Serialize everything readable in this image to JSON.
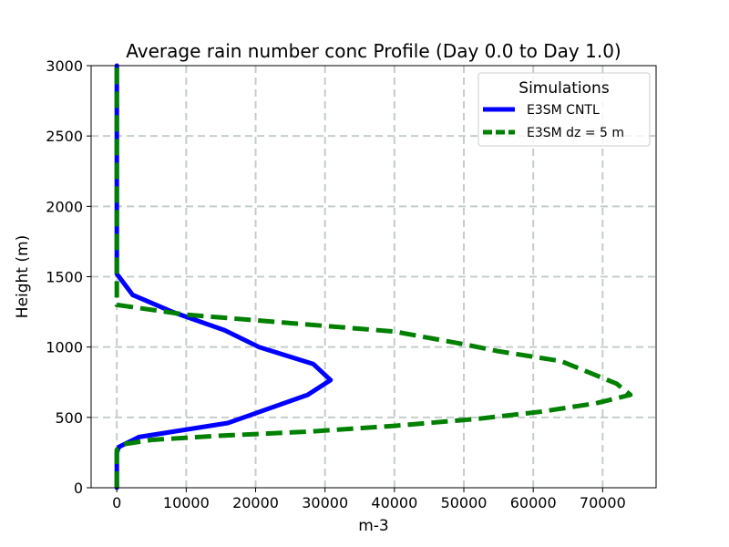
{
  "chart_data": {
    "type": "line",
    "title": "Average rain number conc Profile (Day 0.0 to Day 1.0)",
    "xlabel": "m-3",
    "ylabel": "Height (m)",
    "xlim": [
      -3700,
      77700
    ],
    "ylim": [
      0,
      3000
    ],
    "xticks": [
      0,
      10000,
      20000,
      30000,
      40000,
      50000,
      60000,
      70000
    ],
    "yticks": [
      0,
      500,
      1000,
      1500,
      2000,
      2500,
      3000
    ],
    "grid": true,
    "legend": {
      "title": "Simulations",
      "placement": "top-right"
    },
    "series": [
      {
        "name": "E3SM CNTL",
        "color": "#0000ff",
        "style": "solid",
        "points": [
          [
            0,
            0
          ],
          [
            0,
            50
          ],
          [
            0,
            150
          ],
          [
            0,
            250
          ],
          [
            300,
            290
          ],
          [
            3200,
            360
          ],
          [
            16000,
            460
          ],
          [
            27500,
            660
          ],
          [
            30800,
            765
          ],
          [
            28300,
            880
          ],
          [
            20500,
            1000
          ],
          [
            15500,
            1120
          ],
          [
            8000,
            1250
          ],
          [
            2300,
            1370
          ],
          [
            0,
            1520
          ],
          [
            0,
            1700
          ],
          [
            0,
            2000
          ],
          [
            0,
            2500
          ],
          [
            0,
            3000
          ]
        ]
      },
      {
        "name": "E3SM dz = 5 m",
        "color": "#008000",
        "style": "dashed",
        "points": [
          [
            0,
            0
          ],
          [
            0,
            100
          ],
          [
            0,
            200
          ],
          [
            0,
            270
          ],
          [
            1000,
            310
          ],
          [
            5000,
            340
          ],
          [
            15000,
            370
          ],
          [
            28000,
            400
          ],
          [
            40000,
            440
          ],
          [
            52000,
            490
          ],
          [
            61000,
            540
          ],
          [
            69000,
            600
          ],
          [
            74000,
            660
          ],
          [
            72000,
            740
          ],
          [
            68000,
            820
          ],
          [
            64000,
            900
          ],
          [
            55000,
            970
          ],
          [
            50000,
            1020
          ],
          [
            40000,
            1110
          ],
          [
            30000,
            1150
          ],
          [
            20000,
            1190
          ],
          [
            10000,
            1230
          ],
          [
            0,
            1300
          ],
          [
            0,
            1340
          ],
          [
            0,
            1600
          ],
          [
            0,
            2000
          ],
          [
            0,
            2500
          ],
          [
            0,
            3000
          ]
        ]
      }
    ]
  }
}
